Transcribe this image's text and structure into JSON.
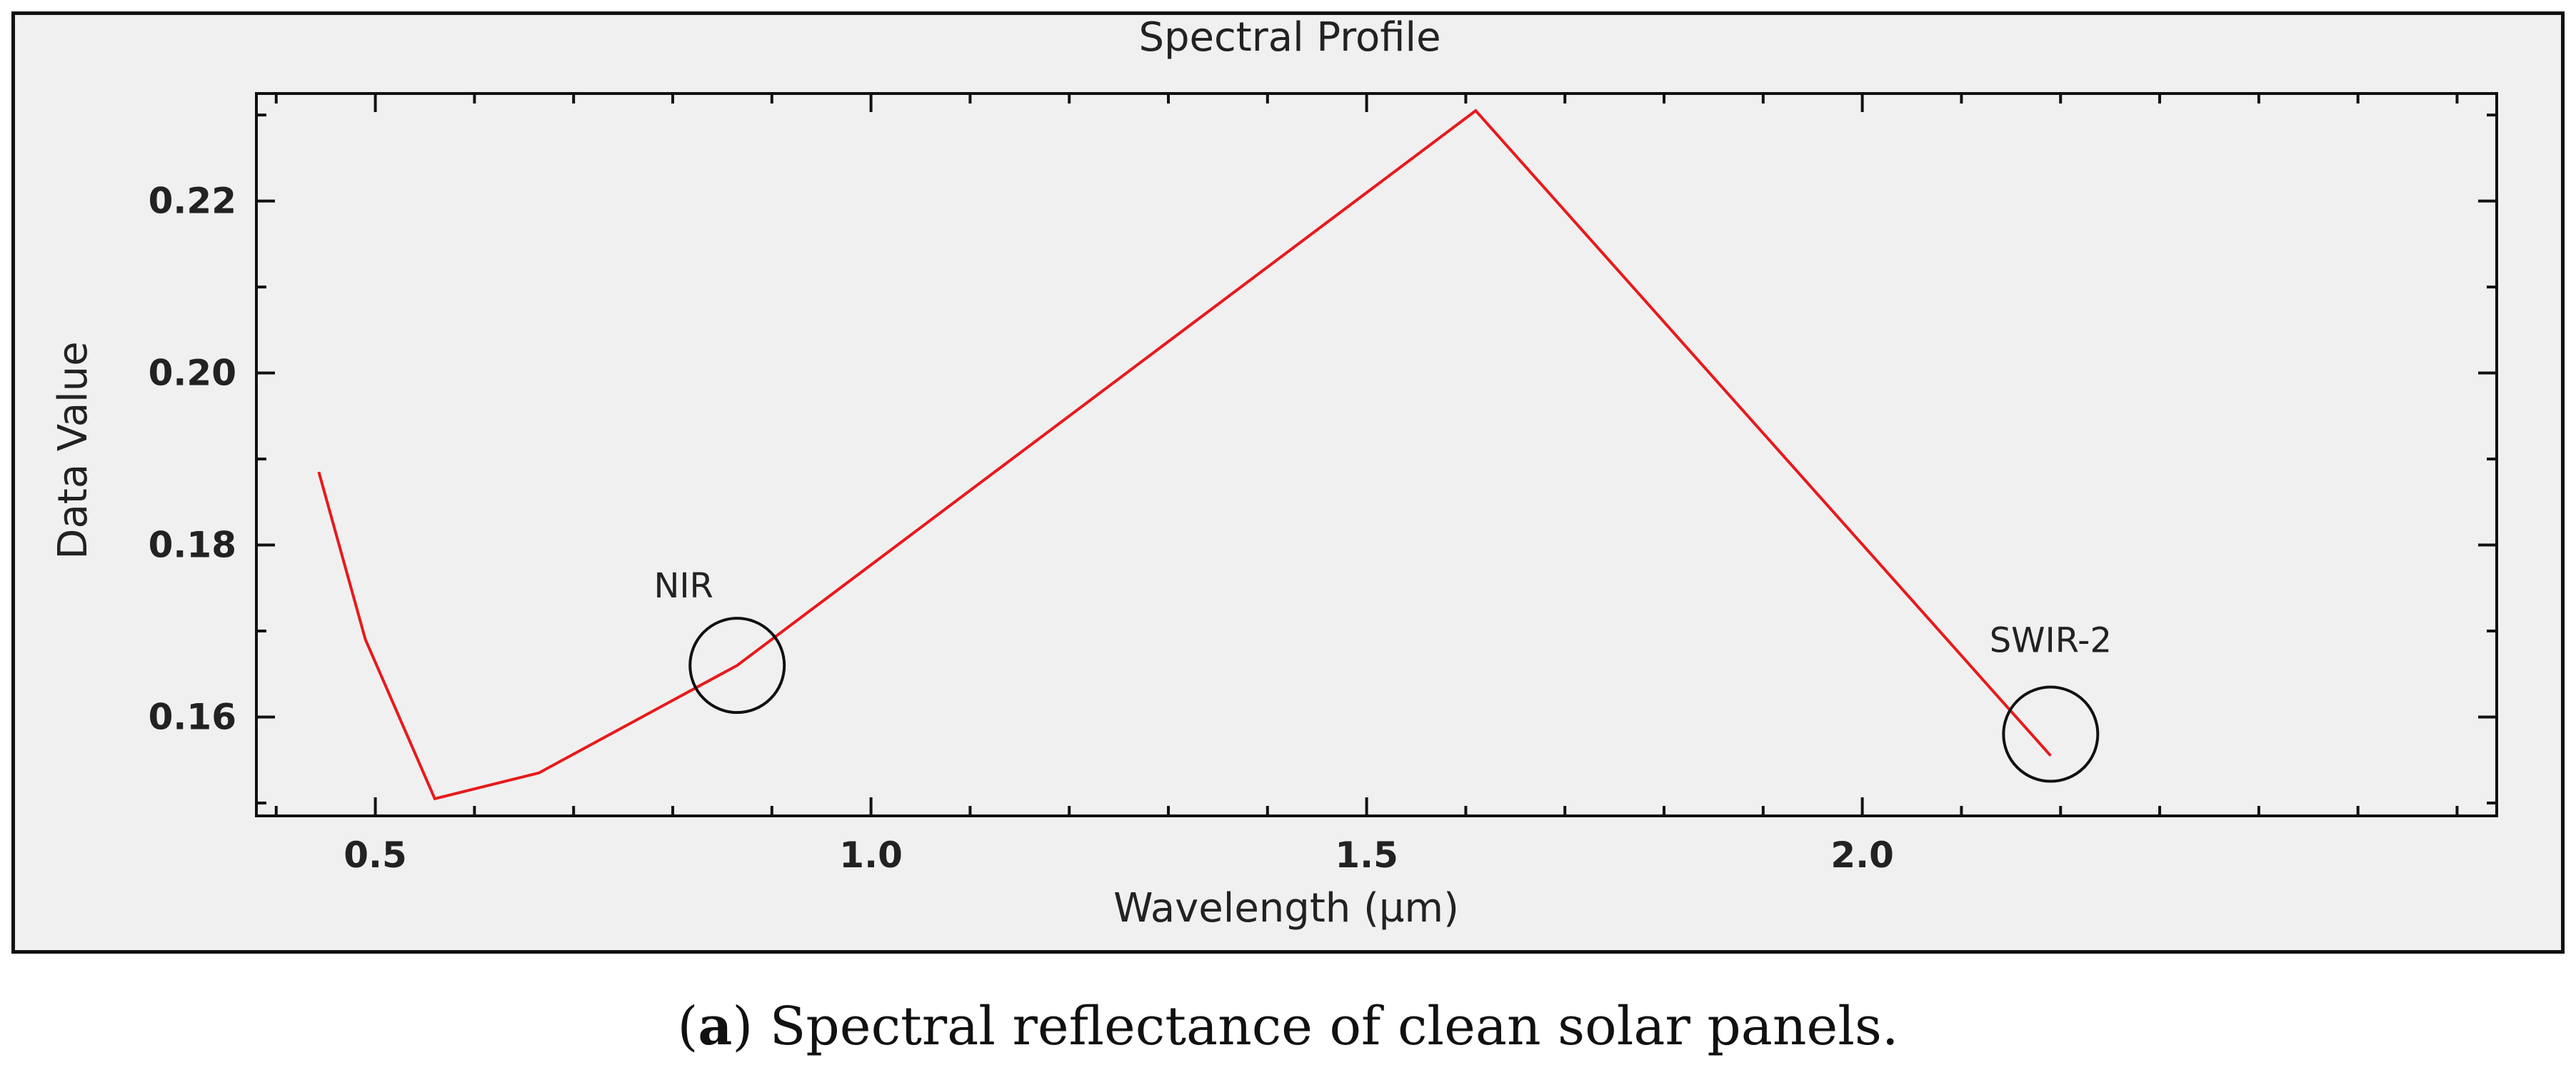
{
  "colors": {
    "series": "#e8191b",
    "axis": "#111111",
    "panel_background": "#f0f0f0",
    "annotation": "#111111"
  },
  "chart_data": {
    "type": "line",
    "title": "Spectral Profile",
    "xlabel": "Wavelength (µm)",
    "ylabel": "Data Value",
    "xlim": [
      0.38,
      2.64
    ],
    "ylim": [
      0.1485,
      0.2325
    ],
    "xticks": [
      0.5,
      1.0,
      1.5,
      2.0
    ],
    "xtick_labels": [
      "0.5",
      "1.0",
      "1.5",
      "2.0"
    ],
    "yticks": [
      0.16,
      0.18,
      0.2,
      0.22
    ],
    "ytick_labels": [
      "0.16",
      "0.18",
      "0.20",
      "0.22"
    ],
    "grid": false,
    "series": [
      {
        "name": "Spectral reflectance",
        "x": [
          0.443,
          0.49,
          0.56,
          0.665,
          0.865,
          1.61,
          2.19
        ],
        "y": [
          0.1885,
          0.169,
          0.1505,
          0.1535,
          0.166,
          0.2305,
          0.1555
        ]
      }
    ],
    "annotations": [
      {
        "label": "NIR",
        "x": 0.865,
        "y": 0.166
      },
      {
        "label": "SWIR-2",
        "x": 2.19,
        "y": 0.158
      }
    ]
  },
  "caption": {
    "label": "a",
    "text": " Spectral reflectance of clean solar panels."
  }
}
